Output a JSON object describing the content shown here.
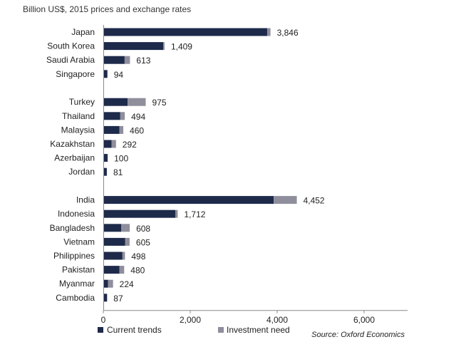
{
  "subtitle": "Billion US$, 2015 prices and exchange rates",
  "source": "Source: Oxford Economics",
  "colors": {
    "current": "#1e2a4a",
    "need": "#8e8e9c",
    "axis": "#888888"
  },
  "chart_data": {
    "type": "bar",
    "orientation": "horizontal",
    "stacked": true,
    "xlim": [
      0,
      7000
    ],
    "xticks": [
      0,
      2000,
      4000,
      6000
    ],
    "xtick_labels": [
      "0",
      "2,000",
      "4,000",
      "6,000"
    ],
    "grid": false,
    "legend_position": "bottom",
    "groups": [
      {
        "categories": [
          "Japan",
          "South Korea",
          "Saudi Arabia",
          "Singapore"
        ]
      },
      {
        "categories": [
          "Turkey",
          "Thailand",
          "Malaysia",
          "Kazakhstan",
          "Azerbaijan",
          "Jordan"
        ]
      },
      {
        "categories": [
          "India",
          "Indonesia",
          "Bangladesh",
          "Vietnam",
          "Philippines",
          "Pakistan",
          "Myanmar",
          "Cambodia"
        ]
      }
    ],
    "categories": [
      "Japan",
      "South Korea",
      "Saudi Arabia",
      "Singapore",
      "Turkey",
      "Thailand",
      "Malaysia",
      "Kazakhstan",
      "Azerbaijan",
      "Jordan",
      "India",
      "Indonesia",
      "Bangladesh",
      "Vietnam",
      "Philippines",
      "Pakistan",
      "Myanmar",
      "Cambodia"
    ],
    "series": [
      {
        "name": "Current trends",
        "values": [
          3770,
          1380,
          490,
          94,
          560,
          390,
          370,
          190,
          100,
          81,
          3920,
          1660,
          410,
          500,
          440,
          370,
          110,
          87
        ]
      },
      {
        "name": "Investment need",
        "values": [
          76,
          29,
          123,
          0,
          415,
          104,
          90,
          102,
          0,
          0,
          532,
          52,
          198,
          105,
          58,
          110,
          114,
          0
        ]
      }
    ],
    "totals": [
      3846,
      1409,
      613,
      94,
      975,
      494,
      460,
      292,
      100,
      81,
      4452,
      1712,
      608,
      605,
      498,
      480,
      224,
      87
    ],
    "total_labels": [
      "3,846",
      "1,409",
      "613",
      "94",
      "975",
      "494",
      "460",
      "292",
      "100",
      "81",
      "4,452",
      "1,712",
      "608",
      "605",
      "498",
      "480",
      "224",
      "87"
    ]
  }
}
